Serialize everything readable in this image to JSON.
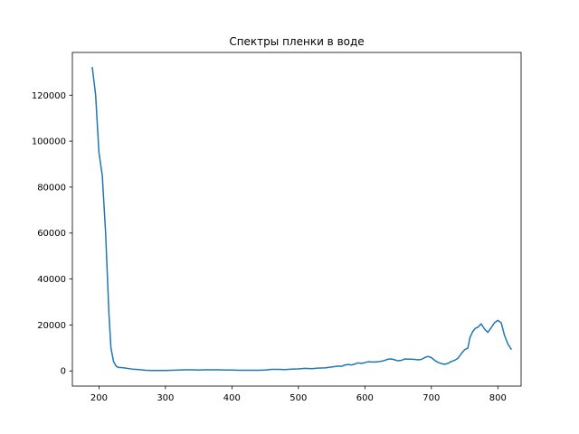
{
  "chart_data": {
    "type": "line",
    "title": "Спектры пленки в воде",
    "xlabel": "",
    "ylabel": "",
    "xlim": [
      160,
      835
    ],
    "ylim": [
      -6600,
      138600
    ],
    "x_ticks": [
      200,
      300,
      400,
      500,
      600,
      700,
      800
    ],
    "y_ticks": [
      0,
      20000,
      40000,
      60000,
      80000,
      100000,
      120000
    ],
    "x_tick_labels": [
      "200",
      "300",
      "400",
      "500",
      "600",
      "700",
      "800"
    ],
    "y_tick_labels": [
      "0",
      "20000",
      "40000",
      "60000",
      "80000",
      "100000",
      "120000"
    ],
    "grid": false,
    "legend": "none",
    "colors": {
      "line": "#1f77b4",
      "axes": "#000000",
      "background": "#ffffff"
    },
    "series": [
      {
        "x": [
          190,
          195,
          200,
          205,
          210,
          215,
          218,
          222,
          226,
          230,
          235,
          240,
          250,
          260,
          270,
          280,
          290,
          300,
          310,
          320,
          330,
          340,
          350,
          360,
          370,
          380,
          390,
          400,
          410,
          420,
          430,
          440,
          450,
          460,
          470,
          480,
          490,
          500,
          510,
          520,
          530,
          540,
          550,
          560,
          565,
          570,
          575,
          580,
          585,
          590,
          595,
          600,
          605,
          610,
          615,
          620,
          625,
          630,
          635,
          640,
          645,
          650,
          655,
          660,
          665,
          670,
          675,
          680,
          685,
          690,
          695,
          700,
          705,
          710,
          715,
          720,
          725,
          730,
          735,
          740,
          745,
          750,
          755,
          758,
          762,
          766,
          770,
          775,
          780,
          785,
          790,
          795,
          800,
          805,
          810,
          815,
          820
        ],
        "y": [
          132000,
          120000,
          95000,
          85000,
          60000,
          25000,
          10000,
          4000,
          2000,
          1500,
          1400,
          1200,
          800,
          600,
          300,
          200,
          200,
          200,
          300,
          400,
          500,
          500,
          400,
          500,
          500,
          500,
          400,
          400,
          300,
          300,
          300,
          300,
          400,
          700,
          700,
          600,
          800,
          900,
          1100,
          1000,
          1200,
          1300,
          1700,
          2100,
          2000,
          2600,
          2800,
          2600,
          3000,
          3500,
          3300,
          3600,
          4000,
          3900,
          3900,
          4000,
          4200,
          4600,
          5100,
          5200,
          4800,
          4400,
          4600,
          5200,
          5100,
          5100,
          5000,
          4800,
          5000,
          5800,
          6300,
          5800,
          4600,
          3700,
          3200,
          2900,
          3300,
          4100,
          4600,
          5500,
          7500,
          9200,
          10000,
          14500,
          17000,
          18500,
          19000,
          20500,
          18200,
          16800,
          18800,
          21000,
          22000,
          21000,
          15500,
          11800,
          9500
        ]
      }
    ]
  }
}
